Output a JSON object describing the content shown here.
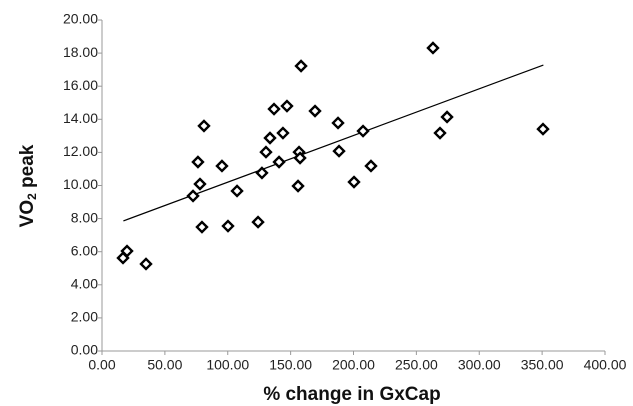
{
  "chart_data": {
    "type": "scatter",
    "xlabel": "% change in GxCap",
    "ylabel": {
      "main": "VO",
      "sub": "2",
      "rest": " peak"
    },
    "x": [
      16.7,
      19.9,
      35,
      72.4,
      76.3,
      77.9,
      79.5,
      81.1,
      95.4,
      100.2,
      107.4,
      124.1,
      127.2,
      130.4,
      133.6,
      136.8,
      140.8,
      143.9,
      147.1,
      158.3,
      156.7,
      157.5,
      155.9,
      169.4,
      187.7,
      188.5,
      200.4,
      207.6,
      213.9,
      263.2,
      268.8,
      274.4,
      350.7
    ],
    "values": [
      5.62,
      6.04,
      5.26,
      9.37,
      11.42,
      10.09,
      7.49,
      13.6,
      11.18,
      7.55,
      9.67,
      7.79,
      10.76,
      12.02,
      12.87,
      14.62,
      11.42,
      13.17,
      14.8,
      17.22,
      12.02,
      11.66,
      9.97,
      14.5,
      13.78,
      12.08,
      10.21,
      13.29,
      11.18,
      18.31,
      13.17,
      14.14,
      13.41
    ],
    "color": "#000000",
    "trendline": {
      "x": [
        17,
        351
      ],
      "y": [
        7.86,
        17.28
      ],
      "color": "#000000"
    },
    "xlim": [
      0,
      400
    ],
    "xticks": [
      {
        "value": 0,
        "label": "0.00"
      },
      {
        "value": 50,
        "label": "50.00"
      },
      {
        "value": 100,
        "label": "100.00"
      },
      {
        "value": 150,
        "label": "150.00"
      },
      {
        "value": 200,
        "label": "200.00"
      },
      {
        "value": 250,
        "label": "250.00"
      },
      {
        "value": 300,
        "label": "300.00"
      },
      {
        "value": 350,
        "label": "350.00"
      },
      {
        "value": 400,
        "label": "400.00"
      }
    ],
    "ylim": [
      0,
      20
    ],
    "yticks": [
      {
        "value": 0,
        "label": "0.00"
      },
      {
        "value": 2,
        "label": "2.00"
      },
      {
        "value": 4,
        "label": "4.00"
      },
      {
        "value": 6,
        "label": "6.00"
      },
      {
        "value": 8,
        "label": "8.00"
      },
      {
        "value": 10,
        "label": "10.00"
      },
      {
        "value": 12,
        "label": "12.00"
      },
      {
        "value": 14,
        "label": "14.00"
      },
      {
        "value": 16,
        "label": "16.00"
      },
      {
        "value": 18,
        "label": "18.00"
      },
      {
        "value": 20,
        "label": "20.00"
      }
    ],
    "grid": false
  }
}
